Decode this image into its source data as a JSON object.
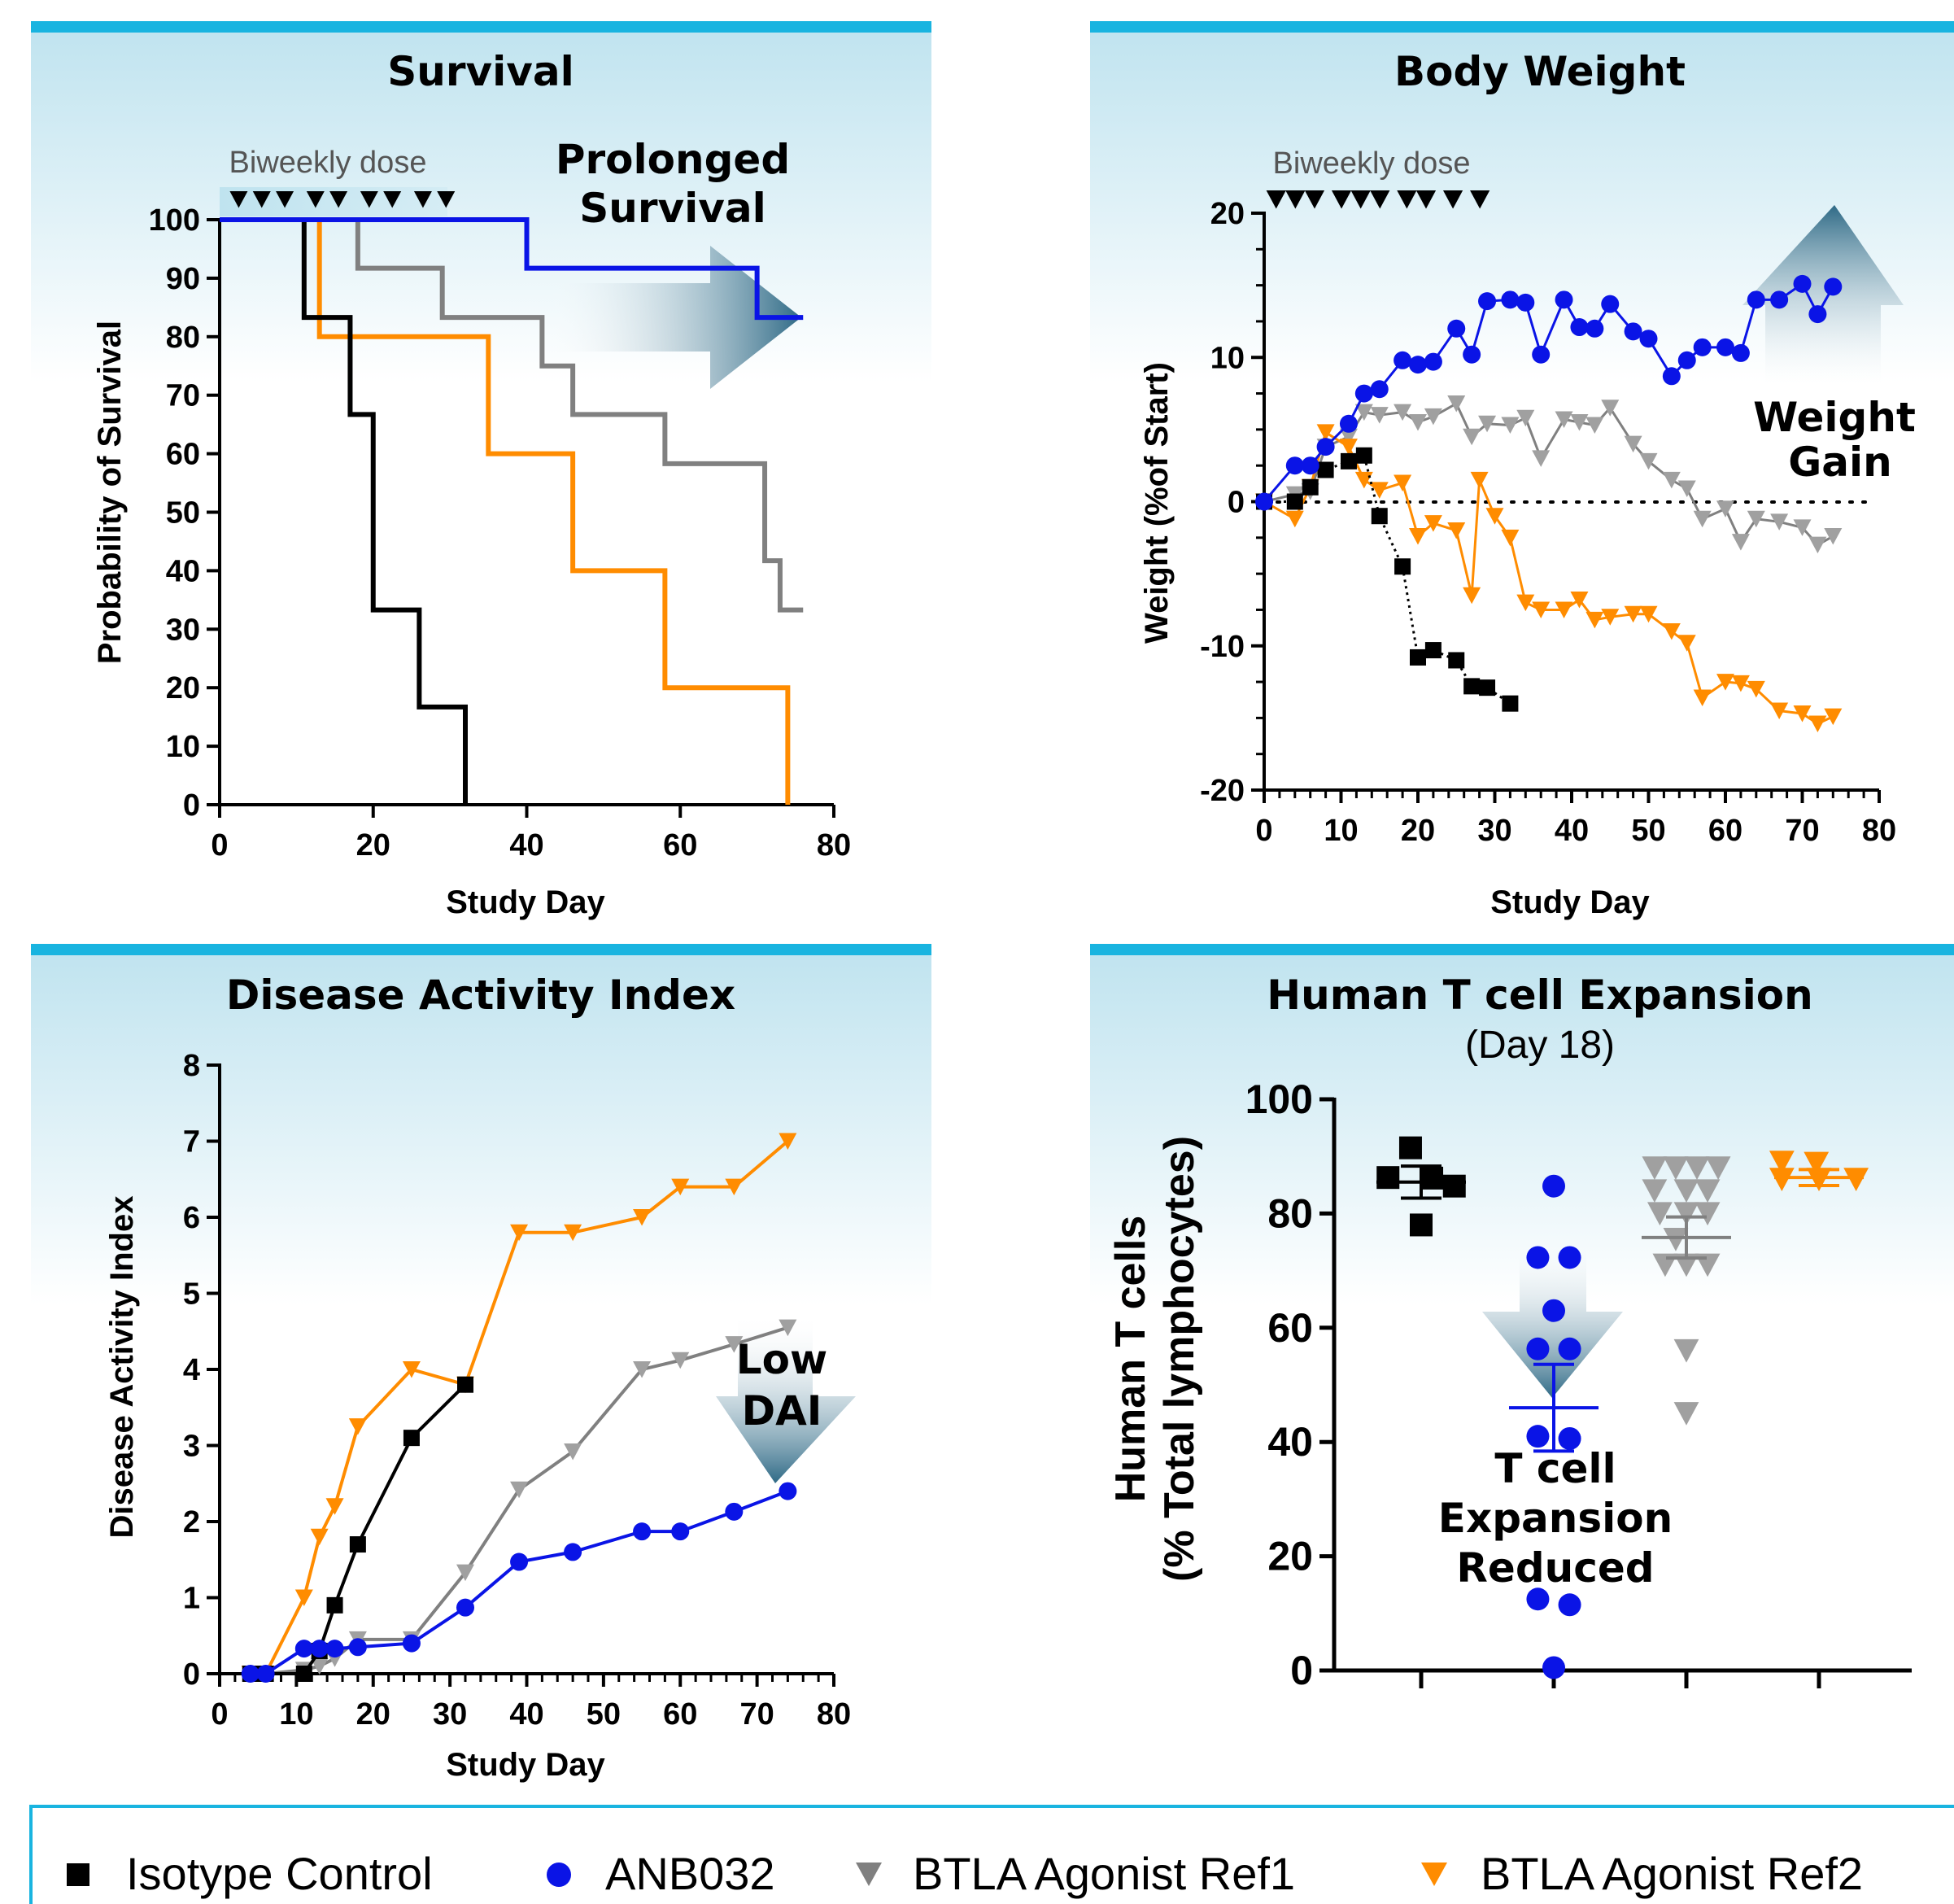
{
  "colors": {
    "isotype": "#000000",
    "anb032": "#0a14e6",
    "ref1": "#808080",
    "ref1_marker": "#a0a0a0",
    "ref2": "#ff8c00",
    "panel_bar": "#19b4e0",
    "panel_grad_top": "#bfe3ef",
    "arrow_dark": "#2f6a86"
  },
  "legend": {
    "items": [
      {
        "label": "Isotype Control",
        "marker": "square-marker"
      },
      {
        "label": "ANB032",
        "marker": "circle-marker"
      },
      {
        "label": "BTLA  Agonist Ref1",
        "marker": "triangle-down-marker"
      },
      {
        "label": "BTLA  Agonist Ref2",
        "marker": "triangle-down-marker"
      }
    ]
  },
  "chart_data": [
    {
      "type": "line",
      "title": "Survival",
      "xlabel": "Study Day",
      "ylabel": "Probability of Survival",
      "xlim": [
        0,
        80
      ],
      "ylim": [
        0,
        100
      ],
      "xticks": [
        "0",
        "20",
        "40",
        "60",
        "80"
      ],
      "yticks": [
        "0",
        "10",
        "20",
        "30",
        "40",
        "50",
        "60",
        "70",
        "80",
        "90",
        "100"
      ],
      "dose_label": "Biweekly dose",
      "dose_days": [
        1,
        4,
        7,
        11,
        14,
        18,
        21,
        25,
        28
      ],
      "annotation": [
        "Prolonged",
        "Survival"
      ],
      "series": [
        {
          "name": "Isotype Control",
          "step": [
            [
              0,
              100
            ],
            [
              11,
              100
            ],
            [
              11,
              83.3
            ],
            [
              17,
              83.3
            ],
            [
              17,
              66.7
            ],
            [
              20,
              66.7
            ],
            [
              20,
              33.3
            ],
            [
              26,
              33.3
            ],
            [
              26,
              16.7
            ],
            [
              32,
              16.7
            ],
            [
              32,
              0
            ]
          ]
        },
        {
          "name": "ANB032",
          "step": [
            [
              0,
              100
            ],
            [
              40,
              100
            ],
            [
              40,
              91.7
            ],
            [
              70,
              91.7
            ],
            [
              70,
              83.3
            ],
            [
              76,
              83.3
            ]
          ]
        },
        {
          "name": "BTLA  Agonist Ref1",
          "step": [
            [
              0,
              100
            ],
            [
              18,
              100
            ],
            [
              18,
              91.7
            ],
            [
              29,
              91.7
            ],
            [
              29,
              83.3
            ],
            [
              42,
              83.3
            ],
            [
              42,
              75
            ],
            [
              46,
              75
            ],
            [
              46,
              66.7
            ],
            [
              58,
              66.7
            ],
            [
              58,
              58.3
            ],
            [
              71,
              58.3
            ],
            [
              71,
              41.7
            ],
            [
              73,
              41.7
            ],
            [
              73,
              33.3
            ],
            [
              76,
              33.3
            ]
          ]
        },
        {
          "name": "BTLA  Agonist Ref2",
          "step": [
            [
              0,
              100
            ],
            [
              13,
              100
            ],
            [
              13,
              80
            ],
            [
              35,
              80
            ],
            [
              35,
              60
            ],
            [
              46,
              60
            ],
            [
              46,
              40
            ],
            [
              58,
              40
            ],
            [
              58,
              20
            ],
            [
              74,
              20
            ],
            [
              74,
              0
            ]
          ]
        }
      ]
    },
    {
      "type": "line",
      "title": "Body Weight",
      "xlabel": "Study Day",
      "ylabel": "Weight (%of Start)",
      "xlim": [
        0,
        80
      ],
      "ylim": [
        -20,
        20
      ],
      "xticks": [
        "0",
        "10",
        "20",
        "30",
        "40",
        "50",
        "60",
        "70",
        "80"
      ],
      "yticks": [
        "-20",
        "-10",
        "0",
        "10",
        "20"
      ],
      "dose_label": "Biweekly dose",
      "dose_days": [
        0.5,
        3,
        5.5,
        9,
        11.5,
        14,
        17.5,
        20,
        23.5,
        27
      ],
      "annotation": [
        "Weight",
        "Gain"
      ],
      "series": [
        {
          "name": "Isotype Control",
          "x": [
            0,
            4,
            6,
            8,
            11,
            13,
            15,
            18,
            20,
            22,
            25,
            27,
            29,
            32
          ],
          "y": [
            0,
            0,
            1,
            2.2,
            2.8,
            3.2,
            -1,
            -4.5,
            -10.8,
            -10.3,
            -11,
            -12.8,
            -12.9,
            -14
          ]
        },
        {
          "name": "ANB032",
          "x": [
            0,
            4,
            6,
            8,
            11,
            13,
            15,
            18,
            20,
            22,
            25,
            27,
            29,
            32,
            34,
            36,
            39,
            41,
            43,
            45,
            48,
            50,
            53,
            55,
            57,
            60,
            62,
            64,
            67,
            70,
            72,
            74
          ],
          "y": [
            0,
            2.5,
            2.5,
            3.8,
            5.4,
            7.5,
            7.8,
            9.8,
            9.5,
            9.7,
            12,
            10.2,
            13.9,
            14,
            13.8,
            10.2,
            14,
            12.1,
            12,
            13.7,
            11.8,
            11.3,
            8.7,
            9.8,
            10.7,
            10.7,
            10.3,
            14,
            14,
            15.1,
            13,
            14.9
          ]
        },
        {
          "name": "BTLA  Agonist Ref1",
          "x": [
            0,
            4,
            6,
            8,
            11,
            13,
            15,
            18,
            20,
            22,
            25,
            27,
            29,
            32,
            34,
            36,
            39,
            41,
            43,
            45,
            48,
            50,
            53,
            55,
            57,
            60,
            62,
            64,
            67,
            70,
            72,
            74
          ],
          "y": [
            0,
            0.5,
            0.7,
            3.8,
            4.5,
            6.2,
            6,
            6.2,
            5.5,
            5.9,
            6.8,
            4.5,
            5.4,
            5.3,
            5.8,
            3,
            5.7,
            5.5,
            5.3,
            6.5,
            4,
            2.8,
            1.5,
            0.9,
            -1.2,
            -0.5,
            -2.8,
            -1.2,
            -1.4,
            -1.8,
            -3,
            -2.4
          ]
        },
        {
          "name": "BTLA  Agonist Ref2",
          "x": [
            0,
            4,
            6,
            8,
            11,
            13,
            15,
            18,
            20,
            22,
            25,
            27,
            28,
            30,
            32,
            34,
            36,
            39,
            41,
            43,
            45,
            48,
            50,
            53,
            55,
            57,
            60,
            62,
            64,
            67,
            70,
            72,
            74
          ],
          "y": [
            0,
            -1.2,
            1,
            4.8,
            3.8,
            1.5,
            0.8,
            1.3,
            -2.4,
            -1.5,
            -2,
            -6.5,
            1.5,
            -1,
            -2.5,
            -7,
            -7.5,
            -7.5,
            -6.8,
            -8.2,
            -8,
            -7.8,
            -7.8,
            -9,
            -9.8,
            -13.6,
            -12.5,
            -12.6,
            -13,
            -14.5,
            -14.7,
            -15.4,
            -14.9
          ]
        }
      ]
    },
    {
      "type": "line",
      "title": "Disease Activity Index",
      "xlabel": "Study Day",
      "ylabel": "Disease Activity Index",
      "xlim": [
        0,
        80
      ],
      "ylim": [
        0,
        8
      ],
      "xticks": [
        "0",
        "10",
        "20",
        "30",
        "40",
        "50",
        "60",
        "70",
        "80"
      ],
      "yticks": [
        "0",
        "1",
        "2",
        "3",
        "4",
        "5",
        "6",
        "7",
        "8"
      ],
      "annotation": [
        "Low",
        "DAI"
      ],
      "series": [
        {
          "name": "Isotype Control",
          "x": [
            4,
            6,
            11,
            13,
            15,
            18,
            25,
            32
          ],
          "y": [
            0,
            0,
            0,
            0.3,
            0.9,
            1.7,
            3.1,
            3.8
          ]
        },
        {
          "name": "ANB032",
          "x": [
            4,
            6,
            11,
            13,
            15,
            18,
            25,
            32,
            39,
            46,
            55,
            60,
            67,
            74
          ],
          "y": [
            0,
            0,
            0.33,
            0.33,
            0.33,
            0.35,
            0.4,
            0.87,
            1.47,
            1.6,
            1.87,
            1.87,
            2.13,
            2.4
          ]
        },
        {
          "name": "BTLA  Agonist Ref1",
          "x": [
            4,
            6,
            11,
            13,
            15,
            18,
            25,
            32,
            39,
            46,
            55,
            60,
            67,
            74
          ],
          "y": [
            0,
            0,
            0.05,
            0.1,
            0.2,
            0.45,
            0.45,
            1.33,
            2.42,
            2.92,
            4,
            4.12,
            4.33,
            4.55
          ]
        },
        {
          "name": "BTLA  Agonist Ref2",
          "x": [
            4,
            6,
            11,
            13,
            15,
            18,
            25,
            32,
            39,
            46,
            55,
            60,
            67,
            74
          ],
          "y": [
            0,
            0,
            1,
            1.8,
            2.2,
            3.25,
            4,
            3.8,
            5.8,
            5.8,
            6,
            6.4,
            6.4,
            7
          ]
        }
      ]
    },
    {
      "type": "scatter",
      "title": "Human T cell Expansion",
      "subtitle": "(Day 18)",
      "ylabel": "Human T cells",
      "ylabel2": "(% Total lymphocytes)",
      "ylim": [
        0,
        100
      ],
      "yticks": [
        "0",
        "20",
        "40",
        "60",
        "80",
        "100"
      ],
      "annotation": [
        "T cell",
        "Expansion",
        "Reduced"
      ],
      "series": [
        {
          "name": "Isotype Control",
          "mean": 85.5,
          "sem": 2.8,
          "points": [
            [
              -0.08,
              91.5
            ],
            [
              -0.25,
              86.3
            ],
            [
              0.08,
              86.2
            ],
            [
              0.25,
              84.8
            ],
            [
              0,
              78
            ]
          ]
        },
        {
          "name": "ANB032",
          "mean": 46,
          "sem": 7.6,
          "points": [
            [
              0,
              84.8
            ],
            [
              -0.12,
              72.3
            ],
            [
              0.12,
              72.3
            ],
            [
              0,
              63
            ],
            [
              -0.12,
              56.3
            ],
            [
              0.12,
              56.3
            ],
            [
              -0.12,
              41
            ],
            [
              0.12,
              40.6
            ],
            [
              -0.12,
              12.5
            ],
            [
              0.12,
              11.5
            ],
            [
              0,
              0.5
            ]
          ]
        },
        {
          "name": "BTLA  Agonist Ref1",
          "mean": 75.8,
          "sem": 3.6,
          "points": [
            [
              -0.24,
              88
            ],
            [
              -0.08,
              88
            ],
            [
              0.08,
              88
            ],
            [
              0.24,
              88
            ],
            [
              -0.24,
              84
            ],
            [
              0,
              84
            ],
            [
              0.16,
              84
            ],
            [
              -0.2,
              80
            ],
            [
              0,
              80
            ],
            [
              0.16,
              80
            ],
            [
              -0.08,
              75.5
            ],
            [
              0,
              71
            ],
            [
              -0.16,
              71
            ],
            [
              0.16,
              71
            ],
            [
              0,
              56
            ],
            [
              0,
              45
            ]
          ]
        },
        {
          "name": "BTLA  Agonist Ref2",
          "mean": 86.3,
          "sem": 1.4,
          "points": [
            [
              -0.28,
              89
            ],
            [
              -0.02,
              88.8
            ],
            [
              -0.28,
              86
            ],
            [
              0,
              86
            ],
            [
              0.28,
              86
            ]
          ]
        }
      ]
    }
  ]
}
